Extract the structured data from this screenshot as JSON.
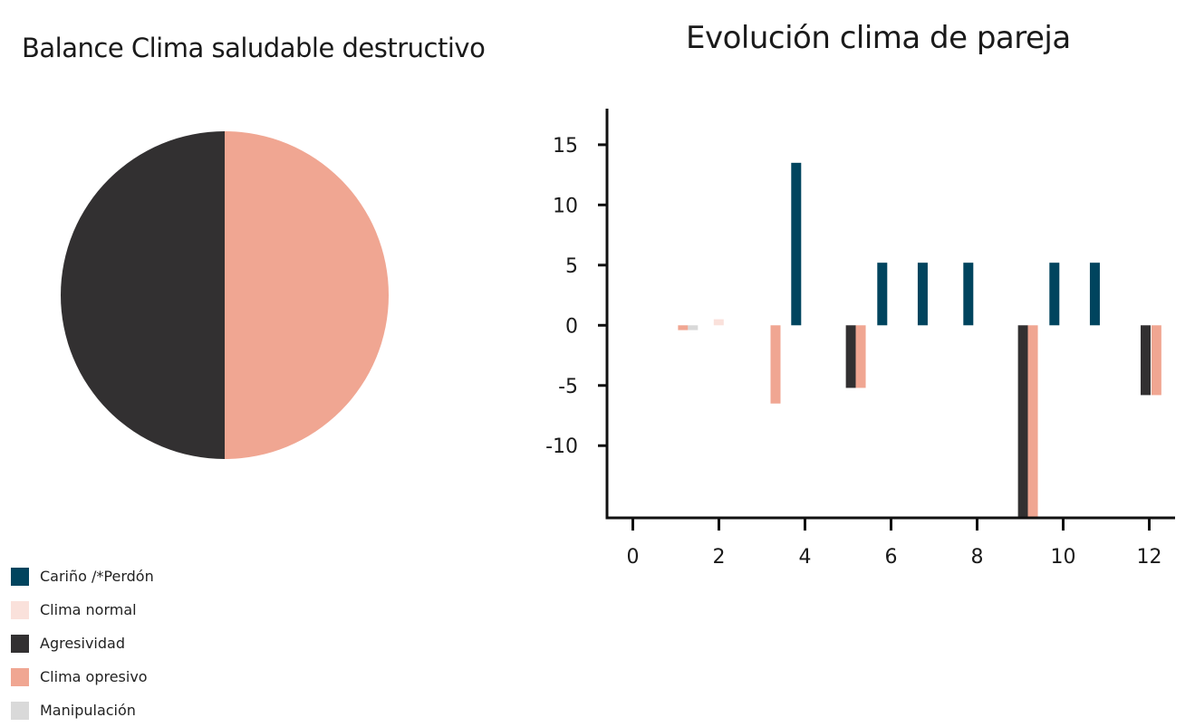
{
  "chart_data": [
    {
      "type": "pie",
      "title": "Balance Clima saludable destructivo",
      "slices": [
        {
          "label": "Clima opresivo",
          "value": 50,
          "color": "#F0A692"
        },
        {
          "label": "Agresividad",
          "value": 50,
          "color": "#323031"
        }
      ]
    },
    {
      "type": "bar",
      "title": "Evolución clima de pareja",
      "xlabel": "",
      "ylabel": "",
      "xlim": [
        -0.6,
        12.6
      ],
      "ylim": [
        -16,
        18
      ],
      "xticks": [
        "0",
        "2",
        "4",
        "6",
        "8",
        "10",
        "12"
      ],
      "yticks": [
        "15",
        "10",
        "5",
        "0",
        "-5",
        "-10"
      ],
      "bars": [
        {
          "series": "Clima opresivo",
          "x": 1.05,
          "value": -0.4
        },
        {
          "series": "Manipulación",
          "x": 1.28,
          "value": -0.4
        },
        {
          "series": "Clima normal",
          "x": 1.88,
          "value": 0.5
        },
        {
          "series": "Clima opresivo",
          "x": 3.2,
          "value": -6.5
        },
        {
          "series": "Cariño /*Perdón",
          "x": 3.68,
          "value": 13.5
        },
        {
          "series": "Agresividad",
          "x": 4.95,
          "value": -5.2
        },
        {
          "series": "Clima opresivo",
          "x": 5.18,
          "value": -5.2
        },
        {
          "series": "Cariño /*Perdón",
          "x": 5.68,
          "value": 5.2
        },
        {
          "series": "Cariño /*Perdón",
          "x": 6.62,
          "value": 5.2
        },
        {
          "series": "Cariño /*Perdón",
          "x": 7.68,
          "value": 5.2
        },
        {
          "series": "Agresividad",
          "x": 8.95,
          "value": -16
        },
        {
          "series": "Clima opresivo",
          "x": 9.18,
          "value": -16
        },
        {
          "series": "Cariño /*Perdón",
          "x": 9.68,
          "value": 5.2
        },
        {
          "series": "Cariño /*Perdón",
          "x": 10.62,
          "value": 5.2
        },
        {
          "series": "Agresividad",
          "x": 11.8,
          "value": -5.8
        },
        {
          "series": "Clima opresivo",
          "x": 12.05,
          "value": -5.8
        }
      ]
    }
  ],
  "legend": [
    {
      "label": "Cariño /*Perdón",
      "color": "#00445E"
    },
    {
      "label": "Clima normal",
      "color": "#FAE1DB"
    },
    {
      "label": "Agresividad",
      "color": "#323031"
    },
    {
      "label": "Clima opresivo",
      "color": "#F0A692"
    },
    {
      "label": "Manipulación",
      "color": "#D9D9D9"
    }
  ]
}
